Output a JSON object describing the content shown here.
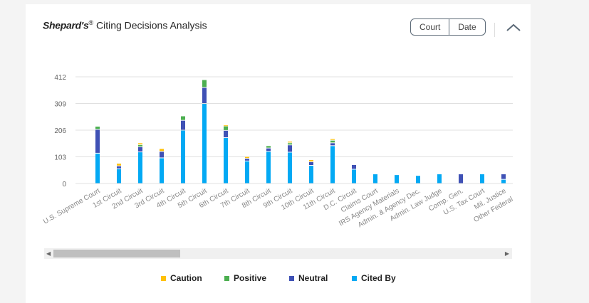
{
  "header": {
    "title_brand": "Shepard's",
    "title_reg": "®",
    "title_rest": " Citing Decisions Analysis"
  },
  "toggle": {
    "court_label": "Court",
    "date_label": "Date"
  },
  "icons": {
    "collapse": "chevron-up-icon",
    "scroll_left": "caret-left-icon",
    "scroll_right": "caret-right-icon"
  },
  "colors": {
    "caution": "#ffc107",
    "positive": "#4caf50",
    "neutral": "#3f51b5",
    "cited_by": "#03a9f4"
  },
  "chart_data": {
    "type": "bar",
    "stacked": true,
    "title": "Shepard's® Citing Decisions Analysis",
    "xlabel": "",
    "ylabel": "",
    "ylim": [
      0,
      412
    ],
    "yticks": [
      "0",
      "103",
      "206",
      "309",
      "412"
    ],
    "grid": true,
    "legend_position": "bottom",
    "categories": [
      "U.S. Supreme Court",
      "1st Circuit",
      "2nd Circuit",
      "3rd Circuit",
      "4th Circuit",
      "5th Circuit",
      "6th Circuit",
      "7th Circuit",
      "8th Circuit",
      "9th Circuit",
      "10th Circuit",
      "11th Circuit",
      "D.C. Circuit",
      "Claims Court",
      "IRS Agency Materials",
      "Admin. & Agency Dec.",
      "Admin. Law Judge",
      "Comp. Gen.",
      "U.S. Tax Court",
      "Mil. Justice",
      "Other Federal Dec."
    ],
    "series": [
      {
        "name": "Cited By",
        "color": "#03a9f4",
        "values": [
          117,
          57,
          122,
          99,
          206,
          309,
          177,
          87,
          124,
          121,
          70,
          146,
          55,
          37,
          34,
          31,
          37,
          0,
          37,
          16,
          0
        ]
      },
      {
        "name": "Neutral",
        "color": "#3f51b5",
        "values": [
          92,
          11,
          20,
          25,
          38,
          62,
          28,
          10,
          13,
          28,
          14,
          11,
          18,
          0,
          0,
          0,
          0,
          37,
          0,
          21,
          0
        ]
      },
      {
        "name": "Positive",
        "color": "#4caf50",
        "values": [
          12,
          0,
          8,
          0,
          17,
          30,
          17,
          0,
          9,
          8,
          0,
          10,
          0,
          0,
          0,
          0,
          0,
          0,
          0,
          0,
          0
        ]
      },
      {
        "name": "Caution",
        "color": "#ffc107",
        "values": [
          0,
          10,
          7,
          11,
          0,
          0,
          4,
          7,
          0,
          6,
          8,
          6,
          0,
          0,
          0,
          0,
          0,
          0,
          0,
          0,
          0
        ]
      }
    ]
  },
  "legend": [
    {
      "label": "Caution",
      "color": "#ffc107"
    },
    {
      "label": "Positive",
      "color": "#4caf50"
    },
    {
      "label": "Neutral",
      "color": "#3f51b5"
    },
    {
      "label": "Cited By",
      "color": "#03a9f4"
    }
  ]
}
